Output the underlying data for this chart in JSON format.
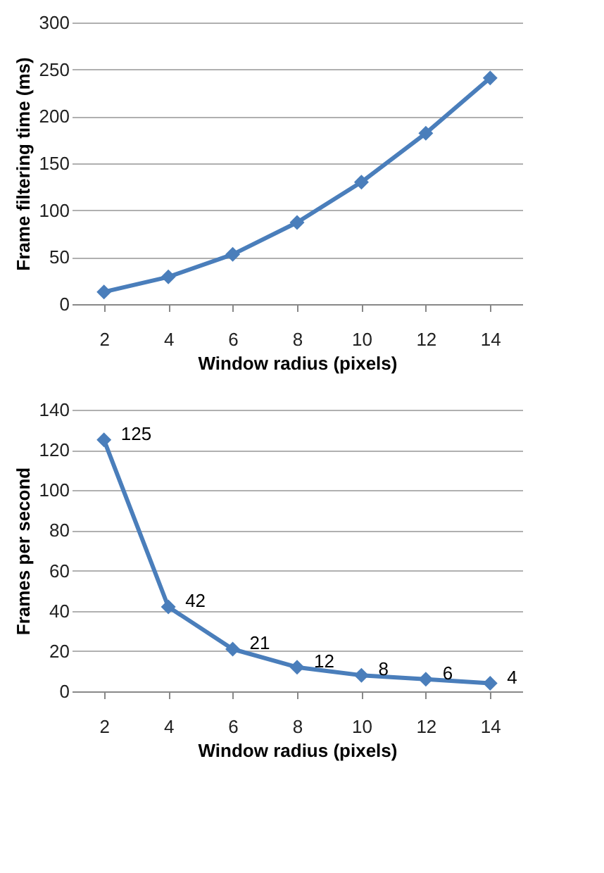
{
  "chart_data": [
    {
      "type": "line",
      "categories": [
        "2",
        "4",
        "6",
        "8",
        "10",
        "12",
        "14"
      ],
      "xlabel": "Window radius (pixels)",
      "ylabel": "Frame filtering time (ms)",
      "series": [
        {
          "color": "#4a7ebb",
          "values": [
            13,
            29,
            53,
            87,
            130,
            182,
            241
          ]
        }
      ],
      "ylim": [
        0,
        300
      ],
      "yticks": [
        0,
        50,
        100,
        150,
        200,
        250,
        300
      ],
      "grid": "y",
      "marker": "diamond",
      "line_style": "solid"
    },
    {
      "type": "line",
      "categories": [
        "2",
        "4",
        "6",
        "8",
        "10",
        "12",
        "14"
      ],
      "xlabel": "Window radius (pixels)",
      "ylabel": "Frames per second",
      "series": [
        {
          "color": "#4a7ebb",
          "values": [
            125,
            42,
            21,
            12,
            8,
            6,
            4
          ]
        }
      ],
      "ylim": [
        0,
        140
      ],
      "yticks": [
        0,
        20,
        40,
        60,
        80,
        100,
        120,
        140
      ],
      "grid": "y",
      "marker": "diamond",
      "line_style": "solid",
      "data_labels": true
    }
  ]
}
